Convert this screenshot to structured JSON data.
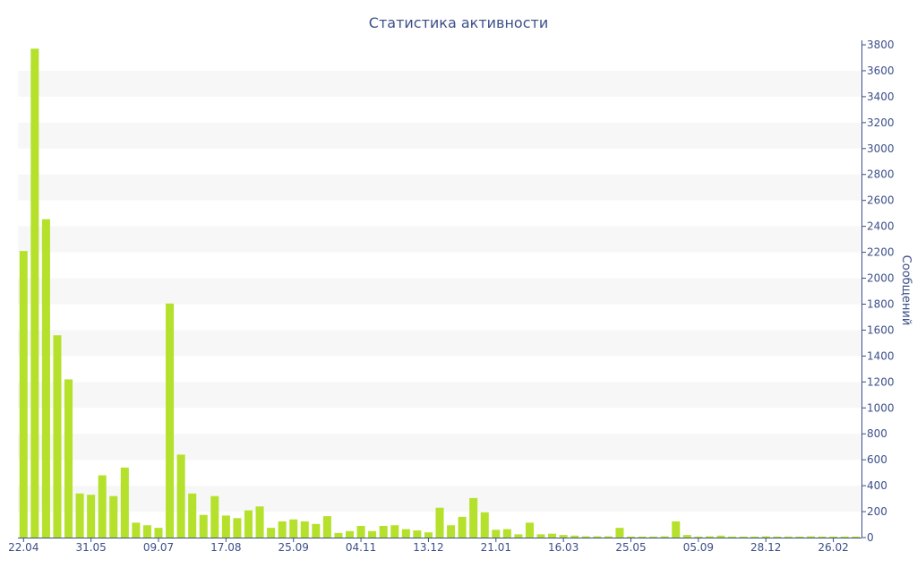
{
  "title": "Статистика активности",
  "chart_data": {
    "type": "bar",
    "title": "Статистика активности",
    "xlabel": "",
    "ylabel": "Сообщений",
    "ylim": [
      0,
      3800
    ],
    "y_ticks": [
      0,
      200,
      400,
      600,
      800,
      1000,
      1200,
      1400,
      1600,
      1800,
      2000,
      2200,
      2400,
      2600,
      2800,
      3000,
      3200,
      3400,
      3600,
      3800
    ],
    "x_tick_labels": [
      {
        "index": 0,
        "label": "22.04"
      },
      {
        "index": 6,
        "label": "31.05"
      },
      {
        "index": 12,
        "label": "09.07"
      },
      {
        "index": 18,
        "label": "17.08"
      },
      {
        "index": 24,
        "label": "25.09"
      },
      {
        "index": 30,
        "label": "04.11"
      },
      {
        "index": 36,
        "label": "13.12"
      },
      {
        "index": 42,
        "label": "21.01"
      },
      {
        "index": 48,
        "label": "16.03"
      },
      {
        "index": 54,
        "label": "25.05"
      },
      {
        "index": 60,
        "label": "05.09"
      },
      {
        "index": 66,
        "label": "28.12"
      },
      {
        "index": 72,
        "label": "26.02"
      }
    ],
    "values": [
      2210,
      3770,
      2455,
      1560,
      1220,
      340,
      330,
      480,
      320,
      540,
      115,
      95,
      75,
      1805,
      640,
      340,
      175,
      320,
      170,
      150,
      210,
      240,
      75,
      125,
      140,
      125,
      105,
      165,
      35,
      50,
      90,
      50,
      90,
      95,
      65,
      55,
      40,
      230,
      95,
      160,
      305,
      195,
      60,
      65,
      25,
      115,
      25,
      30,
      20,
      15,
      10,
      10,
      10,
      75,
      8,
      8,
      8,
      10,
      125,
      20,
      8,
      10,
      15,
      8,
      8,
      8,
      10,
      8,
      8,
      8,
      10,
      8,
      8,
      8,
      8
    ],
    "bar_color": "#b5e12c",
    "band_color": "#f7f7f7",
    "axis_color": "#3b4f8a",
    "text_color": "#3b4f8a",
    "grid": true,
    "y_axis_position": "right"
  }
}
